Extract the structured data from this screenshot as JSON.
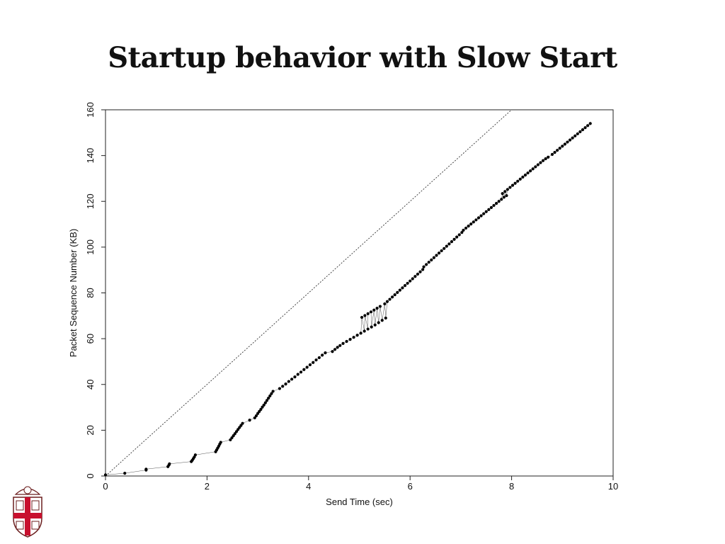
{
  "slide": {
    "title": "Startup behavior with Slow Start"
  },
  "chart_data": {
    "type": "scatter",
    "title": "",
    "xlabel": "Send Time (sec)",
    "ylabel": "Packet Sequence Number (KB)",
    "xlim": [
      0,
      10
    ],
    "ylim": [
      0,
      160
    ],
    "x_ticks": [
      0,
      2,
      4,
      6,
      8,
      10
    ],
    "y_ticks": [
      0,
      20,
      40,
      60,
      80,
      100,
      120,
      140,
      160
    ],
    "grid": false,
    "legend": "none",
    "reference_line": {
      "style": "dotted",
      "from": [
        0,
        0
      ],
      "to": [
        8,
        160
      ]
    },
    "series": [
      {
        "points": [
          [
            0.0,
            0.5
          ],
          [
            0.38,
            1.2
          ],
          [
            0.8,
            2.6
          ],
          [
            0.8,
            3.0
          ],
          [
            1.23,
            4.1
          ],
          [
            1.25,
            4.8
          ],
          [
            1.26,
            5.3
          ],
          [
            1.69,
            6.3
          ],
          [
            1.71,
            6.9
          ],
          [
            1.73,
            7.6
          ],
          [
            1.75,
            8.3
          ],
          [
            1.77,
            9.2
          ],
          [
            2.17,
            10.6
          ],
          [
            2.19,
            11.4
          ],
          [
            2.21,
            12.2
          ],
          [
            2.23,
            13.0
          ],
          [
            2.25,
            13.9
          ],
          [
            2.27,
            14.7
          ],
          [
            2.46,
            15.8
          ],
          [
            2.49,
            16.7
          ],
          [
            2.52,
            17.6
          ],
          [
            2.55,
            18.5
          ],
          [
            2.58,
            19.4
          ],
          [
            2.61,
            20.3
          ],
          [
            2.64,
            21.2
          ],
          [
            2.67,
            22.1
          ],
          [
            2.7,
            23.0
          ],
          [
            2.84,
            24.4
          ],
          [
            2.94,
            25.4
          ],
          [
            2.97,
            26.3
          ],
          [
            3.0,
            27.3
          ],
          [
            3.03,
            28.2
          ],
          [
            3.06,
            29.1
          ],
          [
            3.09,
            30.1
          ],
          [
            3.12,
            31.0
          ],
          [
            3.15,
            32.0
          ],
          [
            3.18,
            33.0
          ],
          [
            3.21,
            34.0
          ],
          [
            3.24,
            35.0
          ],
          [
            3.27,
            36.0
          ],
          [
            3.3,
            37.0
          ],
          [
            3.43,
            38.2
          ],
          [
            3.49,
            39.2
          ],
          [
            3.55,
            40.2
          ],
          [
            3.61,
            41.3
          ],
          [
            3.67,
            42.3
          ],
          [
            3.73,
            43.3
          ],
          [
            3.79,
            44.4
          ],
          [
            3.85,
            45.4
          ],
          [
            3.91,
            46.5
          ],
          [
            3.97,
            47.5
          ],
          [
            4.03,
            48.6
          ],
          [
            4.09,
            49.6
          ],
          [
            4.15,
            50.7
          ],
          [
            4.21,
            51.7
          ],
          [
            4.27,
            52.8
          ],
          [
            4.33,
            53.8
          ],
          [
            4.47,
            54.4
          ],
          [
            4.52,
            55.3
          ],
          [
            4.57,
            56.2
          ],
          [
            4.62,
            57.0
          ],
          [
            4.68,
            57.9
          ],
          [
            4.75,
            58.8
          ],
          [
            4.82,
            59.7
          ],
          [
            4.89,
            60.6
          ],
          [
            4.96,
            61.5
          ],
          [
            5.03,
            62.4
          ],
          [
            5.1,
            63.3
          ],
          [
            5.17,
            64.2
          ],
          [
            5.24,
            65.1
          ],
          [
            5.31,
            66.0
          ],
          [
            5.38,
            67.0
          ],
          [
            5.45,
            68.0
          ],
          [
            5.52,
            69.0
          ],
          [
            5.05,
            69.3
          ],
          [
            5.11,
            70.1
          ],
          [
            5.17,
            70.9
          ],
          [
            5.23,
            71.7
          ],
          [
            5.29,
            72.5
          ],
          [
            5.35,
            73.3
          ],
          [
            5.41,
            74.1
          ],
          [
            5.5,
            75.2
          ],
          [
            5.55,
            76.2
          ],
          [
            5.6,
            77.2
          ],
          [
            5.65,
            78.2
          ],
          [
            5.7,
            79.2
          ],
          [
            5.75,
            80.2
          ],
          [
            5.8,
            81.2
          ],
          [
            5.85,
            82.2
          ],
          [
            5.9,
            83.2
          ],
          [
            5.95,
            84.2
          ],
          [
            6.0,
            85.2
          ],
          [
            6.05,
            86.2
          ],
          [
            6.1,
            87.2
          ],
          [
            6.15,
            88.2
          ],
          [
            6.2,
            89.2
          ],
          [
            6.25,
            90.2
          ],
          [
            6.27,
            91.4
          ],
          [
            6.32,
            92.4
          ],
          [
            6.37,
            93.4
          ],
          [
            6.42,
            94.4
          ],
          [
            6.47,
            95.4
          ],
          [
            6.52,
            96.4
          ],
          [
            6.57,
            97.4
          ],
          [
            6.62,
            98.4
          ],
          [
            6.67,
            99.4
          ],
          [
            6.72,
            100.4
          ],
          [
            6.77,
            101.4
          ],
          [
            6.82,
            102.4
          ],
          [
            6.87,
            103.4
          ],
          [
            6.92,
            104.4
          ],
          [
            6.97,
            105.4
          ],
          [
            7.02,
            106.4
          ],
          [
            7.05,
            107.4
          ],
          [
            7.1,
            108.3
          ],
          [
            7.15,
            109.2
          ],
          [
            7.2,
            110.1
          ],
          [
            7.25,
            111.0
          ],
          [
            7.3,
            111.9
          ],
          [
            7.35,
            112.8
          ],
          [
            7.4,
            113.7
          ],
          [
            7.45,
            114.6
          ],
          [
            7.5,
            115.5
          ],
          [
            7.55,
            116.4
          ],
          [
            7.6,
            117.3
          ],
          [
            7.65,
            118.2
          ],
          [
            7.7,
            119.1
          ],
          [
            7.75,
            120.0
          ],
          [
            7.8,
            120.9
          ],
          [
            7.85,
            121.8
          ],
          [
            7.9,
            122.5
          ],
          [
            7.82,
            123.4
          ],
          [
            7.87,
            124.3
          ],
          [
            7.92,
            125.2
          ],
          [
            7.97,
            126.1
          ],
          [
            8.02,
            127.0
          ],
          [
            8.07,
            127.9
          ],
          [
            8.12,
            128.8
          ],
          [
            8.17,
            129.7
          ],
          [
            8.22,
            130.6
          ],
          [
            8.27,
            131.5
          ],
          [
            8.32,
            132.4
          ],
          [
            8.37,
            133.3
          ],
          [
            8.42,
            134.2
          ],
          [
            8.47,
            135.1
          ],
          [
            8.52,
            136.0
          ],
          [
            8.57,
            136.9
          ],
          [
            8.62,
            137.8
          ],
          [
            8.67,
            138.6
          ],
          [
            8.72,
            139.3
          ],
          [
            8.8,
            140.5
          ],
          [
            8.85,
            141.4
          ],
          [
            8.9,
            142.3
          ],
          [
            8.95,
            143.2
          ],
          [
            9.0,
            144.1
          ],
          [
            9.05,
            145.0
          ],
          [
            9.1,
            145.9
          ],
          [
            9.15,
            146.8
          ],
          [
            9.2,
            147.7
          ],
          [
            9.25,
            148.6
          ],
          [
            9.3,
            149.5
          ],
          [
            9.35,
            150.4
          ],
          [
            9.4,
            151.3
          ],
          [
            9.45,
            152.2
          ],
          [
            9.5,
            153.1
          ],
          [
            9.55,
            154.0
          ]
        ]
      }
    ]
  },
  "logo": {
    "icon": "university-shield-logo",
    "colors": {
      "cross": "#c8102e",
      "shield": "#ffffff",
      "outline": "#6b1e1e"
    }
  }
}
